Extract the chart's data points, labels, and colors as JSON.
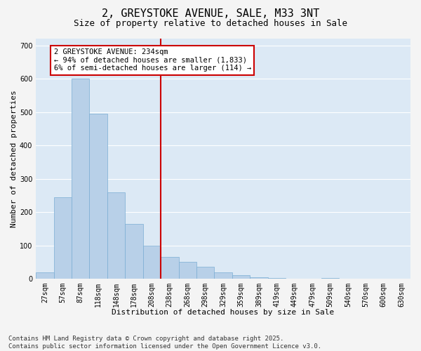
{
  "title_line1": "2, GREYSTOKE AVENUE, SALE, M33 3NT",
  "title_line2": "Size of property relative to detached houses in Sale",
  "xlabel": "Distribution of detached houses by size in Sale",
  "ylabel": "Number of detached properties",
  "bins": [
    "27sqm",
    "57sqm",
    "87sqm",
    "118sqm",
    "148sqm",
    "178sqm",
    "208sqm",
    "238sqm",
    "268sqm",
    "298sqm",
    "329sqm",
    "359sqm",
    "389sqm",
    "419sqm",
    "449sqm",
    "479sqm",
    "509sqm",
    "540sqm",
    "570sqm",
    "600sqm",
    "630sqm"
  ],
  "values": [
    20,
    245,
    600,
    495,
    260,
    165,
    100,
    65,
    50,
    35,
    20,
    10,
    5,
    2,
    0,
    0,
    2,
    0,
    0,
    0,
    0
  ],
  "bar_color": "#b8d0e8",
  "bar_edge_color": "#7aadd4",
  "vline_color": "#cc0000",
  "annotation_text": "2 GREYSTOKE AVENUE: 234sqm\n← 94% of detached houses are smaller (1,833)\n6% of semi-detached houses are larger (114) →",
  "annotation_box_color": "#cc0000",
  "ylim": [
    0,
    720
  ],
  "yticks": [
    0,
    100,
    200,
    300,
    400,
    500,
    600,
    700
  ],
  "background_color": "#dce9f5",
  "grid_color": "#ffffff",
  "footer_line1": "Contains HM Land Registry data © Crown copyright and database right 2025.",
  "footer_line2": "Contains public sector information licensed under the Open Government Licence v3.0.",
  "title_fontsize": 11,
  "subtitle_fontsize": 9,
  "axis_label_fontsize": 8,
  "tick_fontsize": 7,
  "annotation_fontsize": 7.5,
  "footer_fontsize": 6.5
}
